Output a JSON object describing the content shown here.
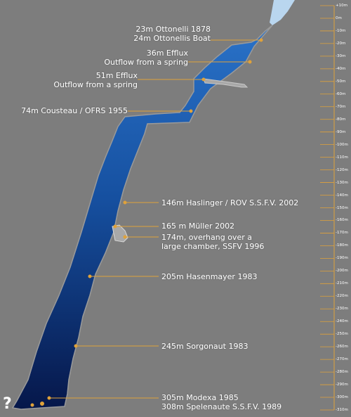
{
  "annotations": [
    {
      "id": "ottonelli",
      "lines": [
        "23m Ottonelli 1878",
        "24m Ottonellis Boat"
      ]
    },
    {
      "id": "efflux36",
      "lines": [
        "36m Efflux",
        "Outflow from a spring"
      ]
    },
    {
      "id": "efflux51",
      "lines": [
        "51m Efflux",
        "Outflow from a spring"
      ]
    },
    {
      "id": "cousteau",
      "lines": [
        "74m Cousteau / OFRS 1955"
      ]
    },
    {
      "id": "haslinger",
      "lines": [
        "146m Haslinger / ROV S.S.F.V. 2002"
      ]
    },
    {
      "id": "muller",
      "lines": [
        "165 m Müller 2002"
      ]
    },
    {
      "id": "overhang",
      "lines": [
        "174m, overhang over a",
        "large chamber, SSFV 1996"
      ]
    },
    {
      "id": "hasenmayer",
      "lines": [
        "205m Hasenmayer 1983"
      ]
    },
    {
      "id": "sorgonaut",
      "lines": [
        "245m Sorgonaut 1983"
      ]
    },
    {
      "id": "modexa",
      "lines": [
        "305m Modexa 1985",
        "308m Spelenaute S.S.F.V. 1989"
      ]
    }
  ],
  "depth_scale": {
    "ticks": [
      "+10m",
      "0m",
      "-10m",
      "-20m",
      "-30m",
      "-40m",
      "-50m",
      "-60m",
      "-70m",
      "-80m",
      "-90m",
      "-100m",
      "-110m",
      "-120m",
      "-130m",
      "-140m",
      "-150m",
      "-160m",
      "-170m",
      "-180m",
      "-190m",
      "-200m",
      "-210m",
      "-220m",
      "-230m",
      "-240m",
      "-250m",
      "-260m",
      "-270m",
      "-280m",
      "-290m",
      "-300m",
      "-310m"
    ]
  },
  "unknown_marker": "?",
  "colors": {
    "background": "#7d7d7d",
    "water_top": "#1c5fb0",
    "water_bottom": "#071a4a",
    "surface_water": "#b9d6ef",
    "rock_detail": "#a8a8a8",
    "leader_line": "#e0a23a"
  }
}
